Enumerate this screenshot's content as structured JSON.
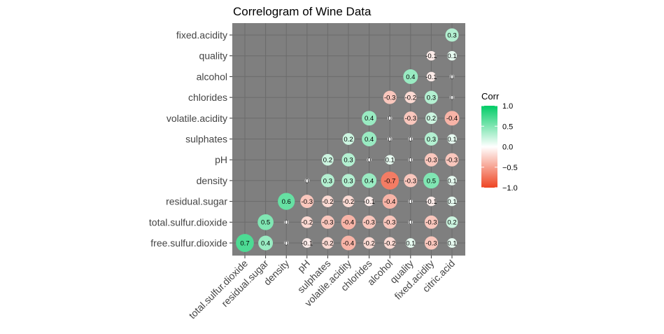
{
  "chart_data": {
    "type": "correlogram",
    "title": "Correlogram of Wine Data",
    "x_labels": [
      "total.sulfur.dioxide",
      "residual.sugar",
      "density",
      "pH",
      "sulphates",
      "volatile.acidity",
      "chlorides",
      "alcohol",
      "quality",
      "fixed.acidity",
      "citric.acid"
    ],
    "y_labels": [
      "fixed.acidity",
      "quality",
      "alcohol",
      "chlorides",
      "volatile.acidity",
      "sulphates",
      "pH",
      "density",
      "residual.sugar",
      "total.sulfur.dioxide",
      "free.sulfur.dioxide"
    ],
    "cells": [
      {
        "row": "fixed.acidity",
        "col": "citric.acid",
        "value": 0.3
      },
      {
        "row": "quality",
        "col": "fixed.acidity",
        "value": -0.1
      },
      {
        "row": "quality",
        "col": "citric.acid",
        "value": 0.1
      },
      {
        "row": "alcohol",
        "col": "quality",
        "value": 0.4
      },
      {
        "row": "alcohol",
        "col": "fixed.acidity",
        "value": -0.1
      },
      {
        "row": "alcohol",
        "col": "citric.acid",
        "value": 0
      },
      {
        "row": "chlorides",
        "col": "alcohol",
        "value": -0.3
      },
      {
        "row": "chlorides",
        "col": "quality",
        "value": -0.2
      },
      {
        "row": "chlorides",
        "col": "fixed.acidity",
        "value": 0.3
      },
      {
        "row": "chlorides",
        "col": "citric.acid",
        "value": 0
      },
      {
        "row": "volatile.acidity",
        "col": "chlorides",
        "value": 0.4
      },
      {
        "row": "volatile.acidity",
        "col": "alcohol",
        "value": 0
      },
      {
        "row": "volatile.acidity",
        "col": "quality",
        "value": -0.3
      },
      {
        "row": "volatile.acidity",
        "col": "fixed.acidity",
        "value": 0.2
      },
      {
        "row": "volatile.acidity",
        "col": "citric.acid",
        "value": -0.4
      },
      {
        "row": "sulphates",
        "col": "volatile.acidity",
        "value": 0.2
      },
      {
        "row": "sulphates",
        "col": "chlorides",
        "value": 0.4
      },
      {
        "row": "sulphates",
        "col": "alcohol",
        "value": 0
      },
      {
        "row": "sulphates",
        "col": "quality",
        "value": 0
      },
      {
        "row": "sulphates",
        "col": "fixed.acidity",
        "value": 0.3
      },
      {
        "row": "sulphates",
        "col": "citric.acid",
        "value": 0.1
      },
      {
        "row": "pH",
        "col": "sulphates",
        "value": 0.2
      },
      {
        "row": "pH",
        "col": "volatile.acidity",
        "value": 0.3
      },
      {
        "row": "pH",
        "col": "chlorides",
        "value": 0
      },
      {
        "row": "pH",
        "col": "alcohol",
        "value": 0.1
      },
      {
        "row": "pH",
        "col": "quality",
        "value": 0
      },
      {
        "row": "pH",
        "col": "fixed.acidity",
        "value": -0.3
      },
      {
        "row": "pH",
        "col": "citric.acid",
        "value": -0.3
      },
      {
        "row": "density",
        "col": "pH",
        "value": 0
      },
      {
        "row": "density",
        "col": "sulphates",
        "value": 0.3
      },
      {
        "row": "density",
        "col": "volatile.acidity",
        "value": 0.3
      },
      {
        "row": "density",
        "col": "chlorides",
        "value": 0.4
      },
      {
        "row": "density",
        "col": "alcohol",
        "value": -0.7
      },
      {
        "row": "density",
        "col": "quality",
        "value": -0.3
      },
      {
        "row": "density",
        "col": "fixed.acidity",
        "value": 0.5
      },
      {
        "row": "density",
        "col": "citric.acid",
        "value": 0.1
      },
      {
        "row": "residual.sugar",
        "col": "density",
        "value": 0.6
      },
      {
        "row": "residual.sugar",
        "col": "pH",
        "value": -0.3
      },
      {
        "row": "residual.sugar",
        "col": "sulphates",
        "value": -0.2
      },
      {
        "row": "residual.sugar",
        "col": "volatile.acidity",
        "value": -0.2
      },
      {
        "row": "residual.sugar",
        "col": "chlorides",
        "value": -0.1
      },
      {
        "row": "residual.sugar",
        "col": "alcohol",
        "value": -0.4
      },
      {
        "row": "residual.sugar",
        "col": "quality",
        "value": 0
      },
      {
        "row": "residual.sugar",
        "col": "fixed.acidity",
        "value": -0.1
      },
      {
        "row": "residual.sugar",
        "col": "citric.acid",
        "value": 0.1
      },
      {
        "row": "total.sulfur.dioxide",
        "col": "residual.sugar",
        "value": 0.5
      },
      {
        "row": "total.sulfur.dioxide",
        "col": "density",
        "value": 0
      },
      {
        "row": "total.sulfur.dioxide",
        "col": "pH",
        "value": -0.2
      },
      {
        "row": "total.sulfur.dioxide",
        "col": "sulphates",
        "value": -0.3
      },
      {
        "row": "total.sulfur.dioxide",
        "col": "volatile.acidity",
        "value": -0.4
      },
      {
        "row": "total.sulfur.dioxide",
        "col": "chlorides",
        "value": -0.3
      },
      {
        "row": "total.sulfur.dioxide",
        "col": "alcohol",
        "value": -0.3
      },
      {
        "row": "total.sulfur.dioxide",
        "col": "quality",
        "value": 0
      },
      {
        "row": "total.sulfur.dioxide",
        "col": "fixed.acidity",
        "value": -0.3
      },
      {
        "row": "total.sulfur.dioxide",
        "col": "citric.acid",
        "value": 0.2
      },
      {
        "row": "free.sulfur.dioxide",
        "col": "total.sulfur.dioxide",
        "value": 0.7
      },
      {
        "row": "free.sulfur.dioxide",
        "col": "residual.sugar",
        "value": 0.4
      },
      {
        "row": "free.sulfur.dioxide",
        "col": "density",
        "value": 0
      },
      {
        "row": "free.sulfur.dioxide",
        "col": "pH",
        "value": -0.1
      },
      {
        "row": "free.sulfur.dioxide",
        "col": "sulphates",
        "value": -0.2
      },
      {
        "row": "free.sulfur.dioxide",
        "col": "volatile.acidity",
        "value": -0.4
      },
      {
        "row": "free.sulfur.dioxide",
        "col": "chlorides",
        "value": -0.2
      },
      {
        "row": "free.sulfur.dioxide",
        "col": "alcohol",
        "value": -0.2
      },
      {
        "row": "free.sulfur.dioxide",
        "col": "quality",
        "value": 0.1
      },
      {
        "row": "free.sulfur.dioxide",
        "col": "fixed.acidity",
        "value": -0.3
      },
      {
        "row": "free.sulfur.dioxide",
        "col": "citric.acid",
        "value": 0.1
      }
    ],
    "legend": {
      "title": "Corr",
      "ticks": [
        1.0,
        0.5,
        0.0,
        -0.5,
        -1.0
      ],
      "tick_labels": [
        "1.0",
        "0.5",
        "0.0",
        "−0.5",
        "−1.0"
      ],
      "placement": "right",
      "colors": {
        "high": "#00cc66",
        "mid": "#ffffff",
        "low": "#ee4422"
      }
    },
    "panel_background": "#7f7f7f",
    "grid": true,
    "grid_color": "#6b6b6b"
  }
}
